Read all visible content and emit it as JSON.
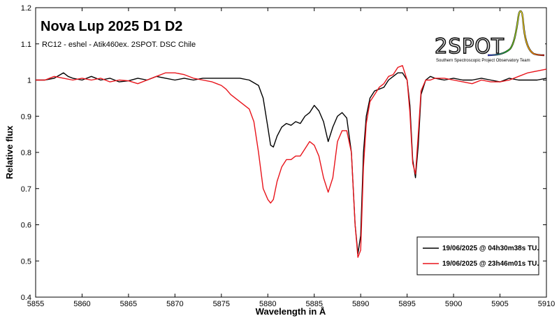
{
  "chart_data": {
    "type": "line",
    "title": "Nova Lup 2025 D1 D2",
    "subtitle": "RC12 - eshel - Atik460ex. 2SPOT. DSC Chile",
    "xlabel": "Wavelength in Å",
    "ylabel": "Relative flux",
    "xlim": [
      5855,
      5910
    ],
    "ylim": [
      0.4,
      1.2
    ],
    "xticks": [
      5855,
      5860,
      5865,
      5870,
      5875,
      5880,
      5885,
      5890,
      5895,
      5900,
      5905,
      5910
    ],
    "yticks": [
      0.4,
      0.5,
      0.6,
      0.7,
      0.8,
      0.9,
      1,
      1.1,
      1.2
    ],
    "grid": "off",
    "legend_position": "lower-right",
    "series": [
      {
        "name": "19/06/2025 @ 04h30m38s TU.",
        "color": "#000000",
        "x": [
          5855.0,
          5855.5,
          5856.0,
          5857.0,
          5858.0,
          5858.5,
          5859.0,
          5860.0,
          5861.0,
          5862.0,
          5863.0,
          5864.0,
          5865.0,
          5866.0,
          5867.0,
          5868.0,
          5869.0,
          5870.0,
          5871.0,
          5872.0,
          5873.0,
          5874.0,
          5875.0,
          5876.0,
          5877.0,
          5878.0,
          5879.0,
          5879.5,
          5880.0,
          5880.3,
          5880.6,
          5881.0,
          5881.5,
          5882.0,
          5882.5,
          5883.0,
          5883.5,
          5884.0,
          5884.5,
          5885.0,
          5885.5,
          5886.0,
          5886.5,
          5887.0,
          5887.5,
          5888.0,
          5888.5,
          5889.0,
          5889.4,
          5889.7,
          5890.0,
          5890.3,
          5890.6,
          5891.0,
          5891.5,
          5892.0,
          5892.5,
          5893.0,
          5893.5,
          5894.0,
          5894.5,
          5895.0,
          5895.3,
          5895.6,
          5895.9,
          5896.2,
          5896.5,
          5897.0,
          5897.5,
          5898.0,
          5899.0,
          5900.0,
          5901.0,
          5902.0,
          5903.0,
          5904.0,
          5905.0,
          5906.0,
          5907.0,
          5908.0,
          5909.0,
          5910.0
        ],
        "y": [
          1.0,
          1.0,
          1.0,
          1.005,
          1.02,
          1.01,
          1.005,
          1.0,
          1.01,
          1.0,
          1.005,
          0.995,
          0.998,
          1.005,
          1.0,
          1.01,
          1.005,
          1.0,
          1.005,
          1.0,
          1.005,
          1.005,
          1.005,
          1.005,
          1.005,
          1.0,
          0.985,
          0.95,
          0.87,
          0.82,
          0.815,
          0.845,
          0.87,
          0.88,
          0.875,
          0.885,
          0.88,
          0.9,
          0.91,
          0.93,
          0.915,
          0.885,
          0.83,
          0.87,
          0.9,
          0.91,
          0.895,
          0.8,
          0.6,
          0.52,
          0.57,
          0.8,
          0.9,
          0.95,
          0.97,
          0.975,
          0.98,
          1.0,
          1.01,
          1.02,
          1.02,
          1.0,
          0.93,
          0.78,
          0.73,
          0.82,
          0.96,
          1.0,
          1.01,
          1.005,
          1.0,
          1.005,
          1.0,
          1.0,
          1.005,
          1.0,
          0.995,
          1.005,
          1.0,
          1.0,
          1.0,
          1.005
        ]
      },
      {
        "name": "19/06/2025 @ 23h46m01s TU.",
        "color": "#e8141b",
        "x": [
          5855.0,
          5856.0,
          5857.0,
          5858.0,
          5859.0,
          5860.0,
          5861.0,
          5862.0,
          5863.0,
          5864.0,
          5865.0,
          5866.0,
          5867.0,
          5868.0,
          5869.0,
          5870.0,
          5871.0,
          5872.0,
          5873.0,
          5874.0,
          5874.5,
          5875.0,
          5875.5,
          5876.0,
          5877.0,
          5878.0,
          5878.5,
          5879.0,
          5879.5,
          5880.0,
          5880.3,
          5880.6,
          5881.0,
          5881.5,
          5882.0,
          5882.5,
          5883.0,
          5883.5,
          5884.0,
          5884.5,
          5885.0,
          5885.5,
          5886.0,
          5886.5,
          5887.0,
          5887.5,
          5888.0,
          5888.5,
          5889.0,
          5889.4,
          5889.7,
          5890.0,
          5890.3,
          5890.6,
          5891.0,
          5891.5,
          5892.0,
          5892.5,
          5893.0,
          5893.5,
          5894.0,
          5894.5,
          5895.0,
          5895.3,
          5895.6,
          5895.9,
          5896.2,
          5896.5,
          5897.0,
          5897.5,
          5898.0,
          5899.0,
          5900.0,
          5901.0,
          5902.0,
          5903.0,
          5904.0,
          5905.0,
          5906.0,
          5907.0,
          5908.0,
          5909.0,
          5910.0
        ],
        "y": [
          1.0,
          1.0,
          1.01,
          1.005,
          1.0,
          1.005,
          1.0,
          1.005,
          0.995,
          1.0,
          0.998,
          0.99,
          1.0,
          1.01,
          1.02,
          1.02,
          1.015,
          1.005,
          1.0,
          0.995,
          0.99,
          0.985,
          0.975,
          0.96,
          0.94,
          0.92,
          0.885,
          0.8,
          0.7,
          0.67,
          0.66,
          0.67,
          0.72,
          0.76,
          0.78,
          0.78,
          0.79,
          0.79,
          0.81,
          0.83,
          0.82,
          0.79,
          0.73,
          0.69,
          0.73,
          0.83,
          0.86,
          0.86,
          0.8,
          0.6,
          0.51,
          0.53,
          0.76,
          0.88,
          0.94,
          0.96,
          0.98,
          0.99,
          1.01,
          1.015,
          1.035,
          1.04,
          1.0,
          0.91,
          0.77,
          0.74,
          0.85,
          0.97,
          1.0,
          1.0,
          1.005,
          1.005,
          1.0,
          0.995,
          0.99,
          1.0,
          0.995,
          0.995,
          1.0,
          1.01,
          1.02,
          1.025,
          1.03
        ]
      }
    ]
  },
  "logo": {
    "text": "2SPOT",
    "caption": "Southern Spectroscopic Project Observatory Team"
  }
}
